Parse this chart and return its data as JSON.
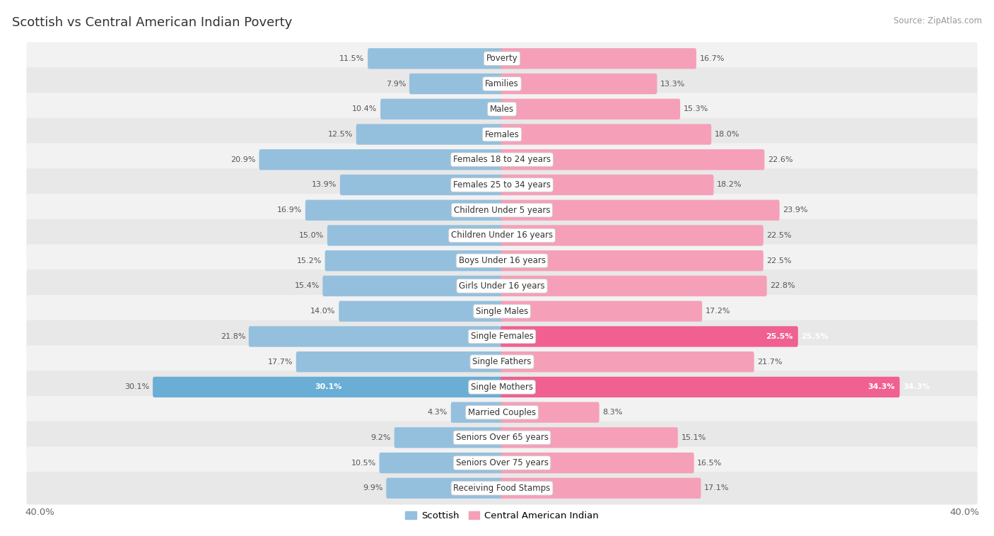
{
  "title": "Scottish vs Central American Indian Poverty",
  "source": "Source: ZipAtlas.com",
  "categories": [
    "Poverty",
    "Families",
    "Males",
    "Females",
    "Females 18 to 24 years",
    "Females 25 to 34 years",
    "Children Under 5 years",
    "Children Under 16 years",
    "Boys Under 16 years",
    "Girls Under 16 years",
    "Single Males",
    "Single Females",
    "Single Fathers",
    "Single Mothers",
    "Married Couples",
    "Seniors Over 65 years",
    "Seniors Over 75 years",
    "Receiving Food Stamps"
  ],
  "scottish": [
    11.5,
    7.9,
    10.4,
    12.5,
    20.9,
    13.9,
    16.9,
    15.0,
    15.2,
    15.4,
    14.0,
    21.8,
    17.7,
    30.1,
    4.3,
    9.2,
    10.5,
    9.9
  ],
  "central_american": [
    16.7,
    13.3,
    15.3,
    18.0,
    22.6,
    18.2,
    23.9,
    22.5,
    22.5,
    22.8,
    17.2,
    25.5,
    21.7,
    34.3,
    8.3,
    15.1,
    16.5,
    17.1
  ],
  "scottish_color": "#94c0de",
  "central_american_color": "#f5a0b8",
  "highlight_scottish": [
    13
  ],
  "highlight_ca": [
    11,
    13
  ],
  "highlight_scottish_color": "#6aaed6",
  "highlight_ca_color": "#f06090",
  "bar_height": 0.58,
  "xlim": 40.0,
  "bg_color": "#ffffff",
  "row_colors": [
    "#f2f2f2",
    "#e8e8e8"
  ],
  "title_fontsize": 13,
  "label_fontsize": 8.5,
  "value_fontsize": 8.0,
  "legend_fontsize": 9.5
}
